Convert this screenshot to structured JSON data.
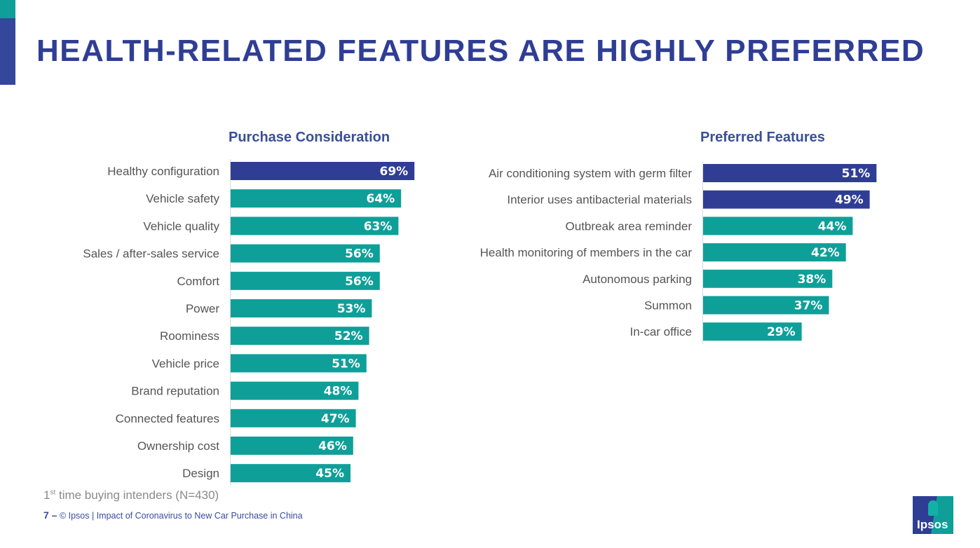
{
  "page": {
    "title": "HEALTH-RELATED FEATURES ARE HIGHLY PREFERRED",
    "footnote_prefix": "1",
    "footnote_sup": "st",
    "footnote_rest": " time buying intenders (N=430)",
    "page_number": "7 –",
    "footer_text": "© Ipsos | Impact of Coronavirus to New Car Purchase in China",
    "logo_text": "Ipsos"
  },
  "colors": {
    "highlight": "#2f3e94",
    "bar": "#0f9f99",
    "title": "#2f3e94"
  },
  "chart_data": [
    {
      "type": "bar",
      "orientation": "horizontal",
      "title": "Purchase Consideration",
      "categories": [
        "Healthy configuration",
        "Vehicle safety",
        "Vehicle quality",
        "Sales / after-sales service",
        "Comfort",
        "Power",
        "Roominess",
        "Vehicle price",
        "Brand reputation",
        "Connected features",
        "Ownership cost",
        "Design"
      ],
      "values": [
        69,
        64,
        63,
        56,
        56,
        53,
        52,
        51,
        48,
        47,
        46,
        45
      ],
      "value_labels": [
        "69%",
        "64%",
        "63%",
        "56%",
        "56%",
        "53%",
        "52%",
        "51%",
        "48%",
        "47%",
        "46%",
        "45%"
      ],
      "highlighted": [
        true,
        false,
        false,
        false,
        false,
        false,
        false,
        false,
        false,
        false,
        false,
        false
      ],
      "xlim": [
        0,
        100
      ],
      "unit": "%",
      "grid": false,
      "legend": "none"
    },
    {
      "type": "bar",
      "orientation": "horizontal",
      "title": "Preferred Features",
      "categories": [
        "Air conditioning system with germ filter",
        "Interior uses antibacterial materials",
        "Outbreak area reminder",
        "Health monitoring of members in the car",
        "Autonomous parking",
        "Summon",
        "In-car office"
      ],
      "values": [
        51,
        49,
        44,
        42,
        38,
        37,
        29
      ],
      "value_labels": [
        "51%",
        "49%",
        "44%",
        "42%",
        "38%",
        "37%",
        "29%"
      ],
      "highlighted": [
        true,
        true,
        false,
        false,
        false,
        false,
        false
      ],
      "xlim": [
        0,
        100
      ],
      "unit": "%",
      "grid": false,
      "legend": "none"
    }
  ]
}
